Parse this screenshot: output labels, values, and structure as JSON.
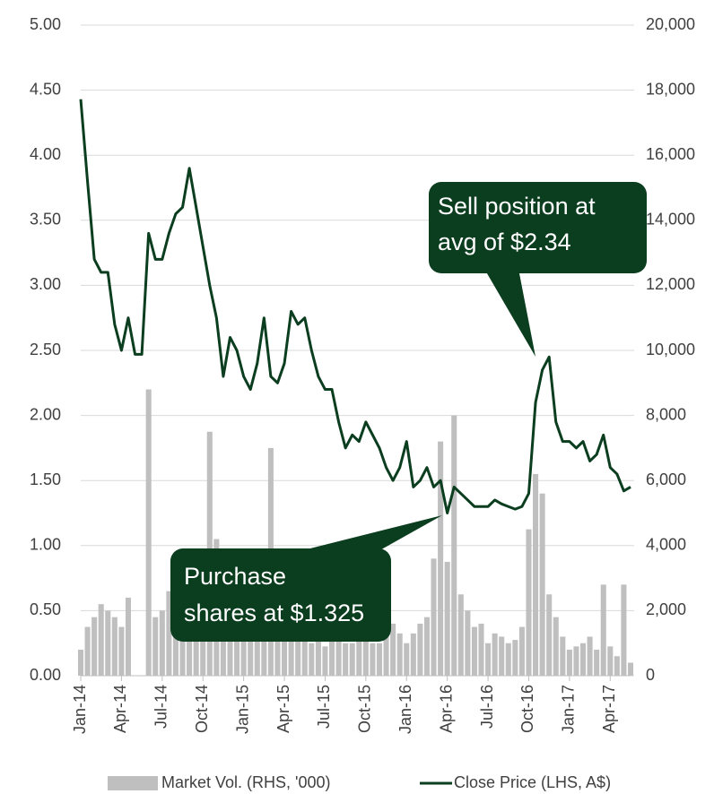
{
  "chart_data": {
    "type": "combo",
    "categories": [
      "Jan-14",
      null,
      null,
      null,
      null,
      null,
      "Apr-14",
      null,
      null,
      null,
      null,
      null,
      "Jul-14",
      null,
      null,
      null,
      null,
      null,
      "Oct-14",
      null,
      null,
      null,
      null,
      null,
      "Jan-15",
      null,
      null,
      null,
      null,
      null,
      "Apr-15",
      null,
      null,
      null,
      null,
      null,
      "Jul-15",
      null,
      null,
      null,
      null,
      null,
      "Oct-15",
      null,
      null,
      null,
      null,
      null,
      "Jan-16",
      null,
      null,
      null,
      null,
      null,
      "Apr-16",
      null,
      null,
      null,
      null,
      null,
      "Jul-16",
      null,
      null,
      null,
      null,
      null,
      "Oct-16",
      null,
      null,
      null,
      null,
      null,
      "Jan-17",
      null,
      null,
      null,
      null,
      null,
      "Apr-17",
      null,
      null,
      null
    ],
    "series": [
      {
        "name": "Market Vol. (RHS, '000)",
        "type": "bar",
        "axis": "y2",
        "color": "#bfbfbf",
        "values": [
          800,
          1500,
          1800,
          2200,
          2000,
          1800,
          1500,
          2400,
          0,
          0,
          8800,
          1800,
          2000,
          2600,
          1500,
          1800,
          2000,
          1200,
          1200,
          7500,
          4200,
          2200,
          1500,
          2000,
          1500,
          1200,
          1500,
          1800,
          7000,
          2000,
          1600,
          2000,
          1400,
          1200,
          1000,
          1100,
          900,
          1200,
          1400,
          1000,
          1000,
          1200,
          1500,
          1000,
          1000,
          1200,
          1600,
          1300,
          1000,
          1300,
          1600,
          1800,
          3600,
          7200,
          3500,
          8000,
          2500,
          2000,
          1500,
          1600,
          1000,
          1300,
          1200,
          1000,
          1100,
          1500,
          4500,
          6200,
          5600,
          2500,
          1800,
          1200,
          800,
          900,
          1000,
          1200,
          800,
          2800,
          900,
          600,
          2800,
          400
        ]
      },
      {
        "name": "Close Price (LHS, A$)",
        "type": "line",
        "axis": "y",
        "color": "#0b3d1f",
        "values": [
          4.43,
          3.8,
          3.2,
          3.1,
          3.1,
          2.7,
          2.5,
          2.75,
          2.47,
          2.47,
          3.4,
          3.2,
          3.2,
          3.4,
          3.55,
          3.6,
          3.9,
          3.6,
          3.3,
          3.0,
          2.75,
          2.3,
          2.6,
          2.5,
          2.3,
          2.2,
          2.4,
          2.75,
          2.3,
          2.25,
          2.4,
          2.8,
          2.7,
          2.75,
          2.5,
          2.3,
          2.2,
          2.2,
          1.95,
          1.75,
          1.85,
          1.8,
          1.95,
          1.85,
          1.75,
          1.6,
          1.5,
          1.6,
          1.8,
          1.45,
          1.5,
          1.6,
          1.45,
          1.5,
          1.25,
          1.45,
          1.4,
          1.35,
          1.3,
          1.3,
          1.3,
          1.35,
          1.32,
          1.3,
          1.28,
          1.3,
          1.4,
          2.1,
          2.35,
          2.45,
          1.95,
          1.8,
          1.8,
          1.75,
          1.8,
          1.65,
          1.7,
          1.85,
          1.6,
          1.55,
          1.42,
          1.45
        ]
      }
    ],
    "ylim": [
      0,
      5
    ],
    "yticks": [
      {
        "value": 0,
        "label": "0.00"
      },
      {
        "value": 0.5,
        "label": "0.50"
      },
      {
        "value": 1,
        "label": "1.00"
      },
      {
        "value": 1.5,
        "label": "1.50"
      },
      {
        "value": 2,
        "label": "2.00"
      },
      {
        "value": 2.5,
        "label": "2.50"
      },
      {
        "value": 3,
        "label": "3.00"
      },
      {
        "value": 3.5,
        "label": "3.50"
      },
      {
        "value": 4,
        "label": "4.00"
      },
      {
        "value": 4.5,
        "label": "4.50"
      },
      {
        "value": 5,
        "label": "5.00"
      }
    ],
    "y2lim": [
      0,
      20000
    ],
    "y2ticks": [
      0,
      {
        "value": 2000,
        "label": "2,000"
      },
      {
        "value": 4000,
        "label": "4,000"
      },
      {
        "value": 6000,
        "label": "6,000"
      },
      {
        "value": 8000,
        "label": "8,000"
      },
      {
        "value": 10000,
        "label": "10,000"
      },
      {
        "value": 12000,
        "label": "12,000"
      },
      {
        "value": 14000,
        "label": "14,000"
      },
      {
        "value": 16000,
        "label": "16,000"
      },
      {
        "value": 18000,
        "label": "18,000"
      },
      {
        "value": 20000,
        "label": "20,000"
      }
    ],
    "grid": true,
    "legend": "bottom",
    "annotations": [
      {
        "lines": [
          "Sell position at",
          "avg of $2.34"
        ]
      },
      {
        "lines": [
          "Purchase",
          "shares at $1.325"
        ]
      }
    ]
  }
}
